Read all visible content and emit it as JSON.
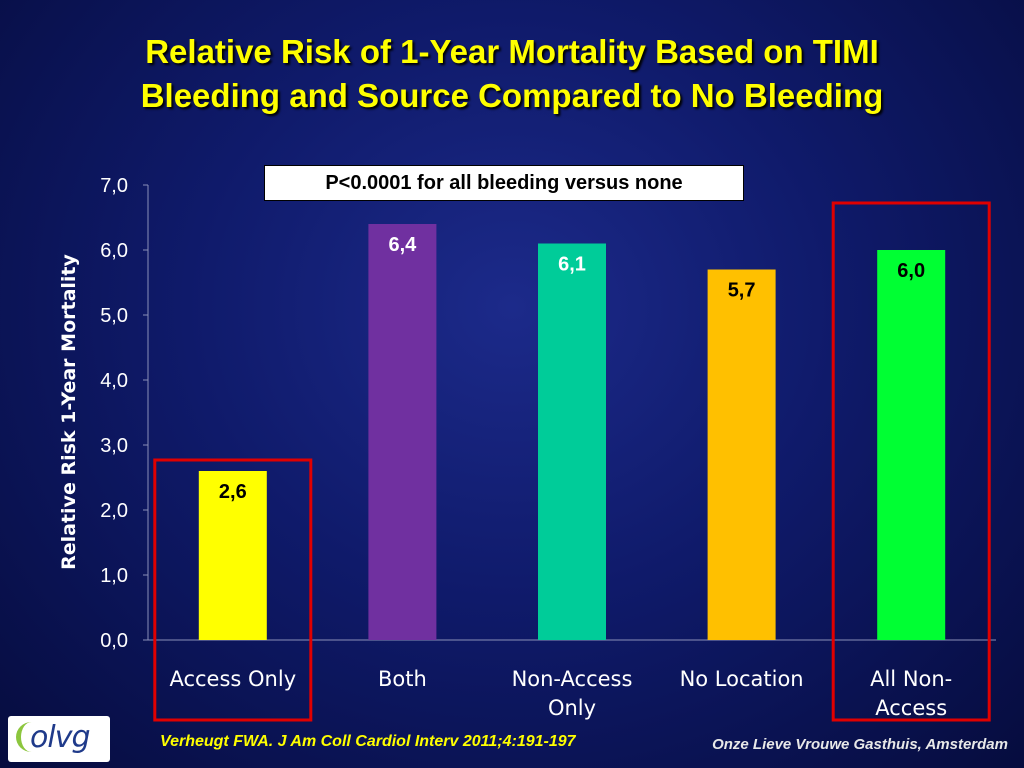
{
  "slide": {
    "title_line1": "Relative Risk of 1-Year Mortality Based on TIMI",
    "title_line2": "Bleeding and Source Compared to No Bleeding",
    "annotation": "P<0.0001 for all bleeding versus none",
    "citation": "Verheugt FWA. J Am Coll Cardiol Interv 2011;4:191-197",
    "logo_text": "olvg",
    "hospital_text": "Onze Lieve Vrouwe Gasthuis, Amsterdam"
  },
  "chart_data": {
    "type": "bar",
    "title": "",
    "xlabel": "",
    "ylabel": "Relative Risk 1-Year Mortality",
    "ylim": [
      0,
      7
    ],
    "yticks": [
      "0,0",
      "1,0",
      "2,0",
      "3,0",
      "4,0",
      "5,0",
      "6,0",
      "7,0"
    ],
    "categories": [
      [
        "Access Only"
      ],
      [
        "Both"
      ],
      [
        "Non-Access",
        "Only"
      ],
      [
        "No Location"
      ],
      [
        "All Non-",
        "Access"
      ]
    ],
    "values": [
      2.6,
      6.4,
      6.1,
      5.7,
      6.0
    ],
    "value_labels": [
      "2,6",
      "6,4",
      "6,1",
      "5,7",
      "6,0"
    ],
    "colors": [
      "#ffff00",
      "#7030a0",
      "#00cc99",
      "#ffc000",
      "#00ff33"
    ],
    "label_colors": [
      "#000000",
      "#ffffff",
      "#ffffff",
      "#000000",
      "#000000"
    ],
    "highlighted": [
      0,
      4
    ],
    "highlight_color": "#e00000",
    "grid": false,
    "legend": "none"
  }
}
